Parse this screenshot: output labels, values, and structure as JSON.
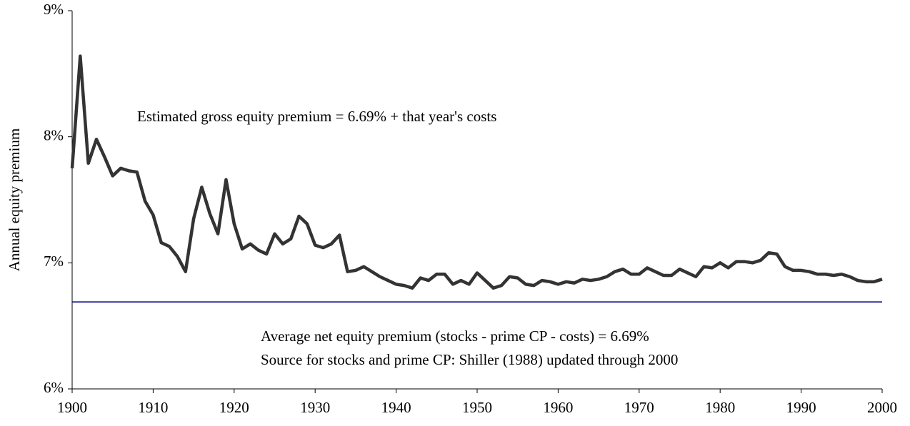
{
  "chart_data": {
    "type": "line",
    "ylabel": "Annual equity premium",
    "annotations": [
      "Estimated gross equity premium = 6.69% + that year's costs",
      "Average net equity premium (stocks - prime CP - costs) = 6.69%",
      "Source for stocks and prime CP:  Shiller (1988) updated through 2000"
    ],
    "x": [
      1900,
      1901,
      1902,
      1903,
      1904,
      1905,
      1906,
      1907,
      1908,
      1909,
      1910,
      1911,
      1912,
      1913,
      1914,
      1915,
      1916,
      1917,
      1918,
      1919,
      1920,
      1921,
      1922,
      1923,
      1924,
      1925,
      1926,
      1927,
      1928,
      1929,
      1930,
      1931,
      1932,
      1933,
      1934,
      1935,
      1936,
      1937,
      1938,
      1939,
      1940,
      1941,
      1942,
      1943,
      1944,
      1945,
      1946,
      1947,
      1948,
      1949,
      1950,
      1951,
      1952,
      1953,
      1954,
      1955,
      1956,
      1957,
      1958,
      1959,
      1960,
      1961,
      1962,
      1963,
      1964,
      1965,
      1966,
      1967,
      1968,
      1969,
      1970,
      1971,
      1972,
      1973,
      1974,
      1975,
      1976,
      1977,
      1978,
      1979,
      1980,
      1981,
      1982,
      1983,
      1984,
      1985,
      1986,
      1987,
      1988,
      1989,
      1990,
      1991,
      1992,
      1993,
      1994,
      1995,
      1996,
      1997,
      1998,
      1999,
      2000
    ],
    "values": [
      7.75,
      8.64,
      7.79,
      7.98,
      7.84,
      7.69,
      7.75,
      7.73,
      7.72,
      7.49,
      7.38,
      7.16,
      7.13,
      7.05,
      6.93,
      7.35,
      7.6,
      7.39,
      7.23,
      7.66,
      7.31,
      7.11,
      7.15,
      7.1,
      7.07,
      7.23,
      7.15,
      7.19,
      7.37,
      7.31,
      7.14,
      7.12,
      7.15,
      7.22,
      6.93,
      6.94,
      6.97,
      6.93,
      6.89,
      6.86,
      6.83,
      6.82,
      6.8,
      6.88,
      6.86,
      6.91,
      6.91,
      6.83,
      6.86,
      6.83,
      6.92,
      6.86,
      6.8,
      6.82,
      6.89,
      6.88,
      6.83,
      6.82,
      6.86,
      6.85,
      6.83,
      6.85,
      6.84,
      6.87,
      6.86,
      6.87,
      6.89,
      6.93,
      6.95,
      6.91,
      6.91,
      6.96,
      6.93,
      6.9,
      6.9,
      6.95,
      6.92,
      6.89,
      6.97,
      6.96,
      7.0,
      6.96,
      7.01,
      7.01,
      7.0,
      7.02,
      7.08,
      7.07,
      6.97,
      6.94,
      6.94,
      6.93,
      6.91,
      6.91,
      6.9,
      6.91,
      6.89,
      6.86,
      6.85,
      6.85,
      6.87
    ],
    "color": "#333333",
    "reference_line": {
      "value": 6.69,
      "color": "#000080"
    },
    "xlim": [
      1900,
      2000
    ],
    "xticks": [
      1900,
      1910,
      1920,
      1930,
      1940,
      1950,
      1960,
      1970,
      1980,
      1990,
      2000
    ],
    "ylim": [
      6,
      9
    ],
    "yticks": [
      {
        "value": 6,
        "label": "6%"
      },
      {
        "value": 7,
        "label": "7%"
      },
      {
        "value": 8,
        "label": "8%"
      },
      {
        "value": 9,
        "label": "9%"
      }
    ]
  }
}
